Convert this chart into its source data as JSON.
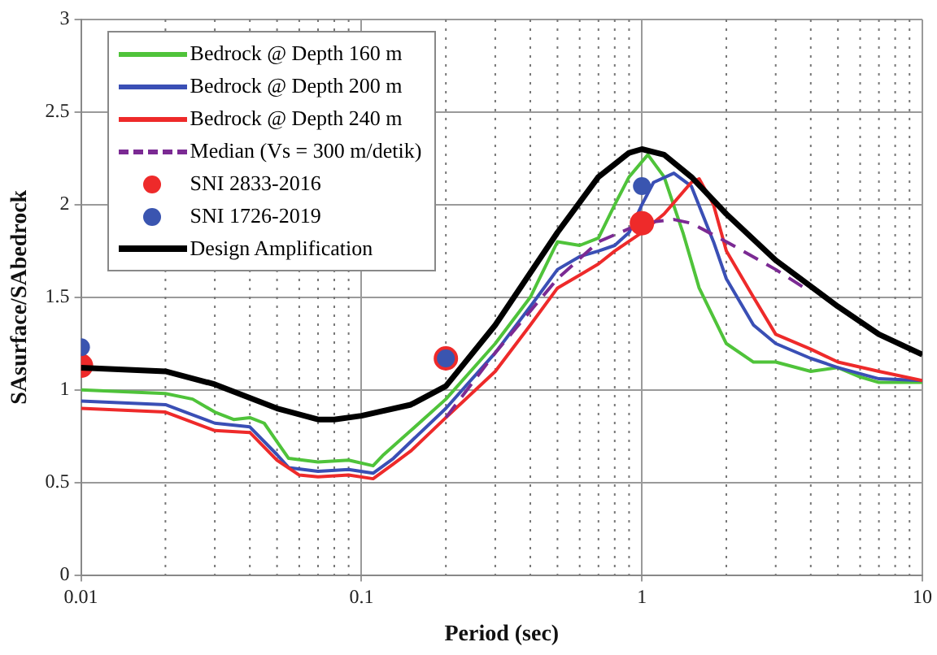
{
  "chart_data": {
    "type": "line",
    "xlabel": "Period (sec)",
    "ylabel": "SAsurface/SAbedrock",
    "log": "x",
    "grid": true,
    "legend": "top left",
    "xlim": [
      0.01,
      10
    ],
    "ylim": [
      0,
      3
    ],
    "xticks": [
      0.01,
      {
        "value": 0.02,
        "label": null
      },
      {
        "value": 0.03,
        "label": null
      },
      {
        "value": 0.04,
        "label": null
      },
      {
        "value": 0.05,
        "label": null
      },
      {
        "value": 0.06,
        "label": null
      },
      {
        "value": 0.07,
        "label": null
      },
      {
        "value": 0.08,
        "label": null
      },
      {
        "value": 0.09,
        "label": null
      },
      0.1,
      {
        "value": 0.2,
        "label": null
      },
      {
        "value": 0.3,
        "label": null
      },
      {
        "value": 0.4,
        "label": null
      },
      {
        "value": 0.5,
        "label": null
      },
      {
        "value": 0.6,
        "label": null
      },
      {
        "value": 0.7,
        "label": null
      },
      {
        "value": 0.8,
        "label": null
      },
      {
        "value": 0.9,
        "label": null
      },
      1,
      {
        "value": 2,
        "label": null
      },
      {
        "value": 3,
        "label": null
      },
      {
        "value": 4,
        "label": null
      },
      {
        "value": 5,
        "label": null
      },
      {
        "value": 6,
        "label": null
      },
      {
        "value": 7,
        "label": null
      },
      {
        "value": 8,
        "label": null
      },
      {
        "value": 9,
        "label": null
      },
      10
    ],
    "yticks": [
      0,
      0.5,
      1,
      1.5,
      2,
      2.5,
      3
    ],
    "series": [
      {
        "name": "Bedrock @ Depth 160 m",
        "marker": "none",
        "color": "#4fc33a",
        "x": [
          0.01,
          0.02,
          0.025,
          0.03,
          0.035,
          0.04,
          0.045,
          0.05,
          0.055,
          0.07,
          0.09,
          0.11,
          0.12,
          0.15,
          0.2,
          0.3,
          0.4,
          0.5,
          0.6,
          0.7,
          0.8,
          0.9,
          1.05,
          1.2,
          1.4,
          1.6,
          2,
          2.5,
          3,
          4,
          5,
          6,
          7,
          10
        ],
        "values": [
          1.0,
          0.98,
          0.95,
          0.88,
          0.84,
          0.85,
          0.82,
          0.72,
          0.63,
          0.61,
          0.62,
          0.59,
          0.65,
          0.78,
          0.95,
          1.25,
          1.5,
          1.8,
          1.78,
          1.82,
          2.0,
          2.15,
          2.27,
          2.15,
          1.85,
          1.55,
          1.25,
          1.15,
          1.15,
          1.1,
          1.12,
          1.07,
          1.04,
          1.04
        ]
      },
      {
        "name": "Bedrock @ Depth 200 m",
        "marker": "none",
        "color": "#3a4fb5",
        "x": [
          0.01,
          0.02,
          0.03,
          0.04,
          0.05,
          0.055,
          0.07,
          0.09,
          0.11,
          0.13,
          0.15,
          0.2,
          0.3,
          0.4,
          0.5,
          0.6,
          0.7,
          0.8,
          0.9,
          1.0,
          1.1,
          1.3,
          1.5,
          1.8,
          2,
          2.5,
          3,
          4,
          5,
          7,
          10
        ],
        "values": [
          0.94,
          0.92,
          0.82,
          0.8,
          0.65,
          0.58,
          0.56,
          0.57,
          0.55,
          0.63,
          0.72,
          0.9,
          1.2,
          1.45,
          1.65,
          1.72,
          1.75,
          1.78,
          1.85,
          2.0,
          2.12,
          2.17,
          2.1,
          1.8,
          1.6,
          1.35,
          1.25,
          1.17,
          1.12,
          1.06,
          1.05
        ]
      },
      {
        "name": "Bedrock @ Depth 240 m",
        "marker": "none",
        "color": "#ee2a2a",
        "x": [
          0.01,
          0.02,
          0.03,
          0.04,
          0.05,
          0.06,
          0.07,
          0.09,
          0.11,
          0.13,
          0.15,
          0.2,
          0.3,
          0.4,
          0.5,
          0.6,
          0.7,
          0.8,
          1.0,
          1.2,
          1.5,
          1.6,
          1.8,
          2,
          2.5,
          3,
          4,
          5,
          7,
          10
        ],
        "values": [
          0.9,
          0.88,
          0.78,
          0.77,
          0.62,
          0.54,
          0.53,
          0.54,
          0.52,
          0.6,
          0.67,
          0.85,
          1.1,
          1.35,
          1.55,
          1.62,
          1.68,
          1.75,
          1.85,
          1.95,
          2.12,
          2.14,
          2.0,
          1.75,
          1.5,
          1.3,
          1.22,
          1.15,
          1.1,
          1.05
        ]
      },
      {
        "name": "Median (Vs = 300 m/detik)",
        "marker": "none",
        "line_style": "dashed",
        "color": "#7b2a93",
        "x": [
          0.2,
          0.3,
          0.5,
          0.7,
          1.0,
          1.3,
          1.5,
          2,
          3,
          3.8
        ],
        "values": [
          0.85,
          1.2,
          1.6,
          1.8,
          1.9,
          1.92,
          1.9,
          1.8,
          1.65,
          1.55
        ]
      },
      {
        "name": "SNI 2833-2016",
        "type": "scatter",
        "marker": "circle",
        "color": "#ee2a2a",
        "x": [
          0.01,
          0.2,
          1.0
        ],
        "values": [
          1.13,
          1.17,
          1.9
        ]
      },
      {
        "name": "SNI 1726-2019",
        "type": "scatter",
        "marker": "circle",
        "color": "#3a55b0",
        "x": [
          0.01,
          0.2,
          1.0
        ],
        "values": [
          1.23,
          1.17,
          2.1
        ]
      },
      {
        "name": "Design Amplification",
        "marker": "none",
        "color": "#000000",
        "x": [
          0.01,
          0.02,
          0.03,
          0.05,
          0.07,
          0.08,
          0.1,
          0.15,
          0.2,
          0.3,
          0.5,
          0.7,
          0.9,
          1.0,
          1.2,
          1.5,
          2,
          3,
          5,
          7,
          10
        ],
        "values": [
          1.12,
          1.1,
          1.03,
          0.9,
          0.84,
          0.84,
          0.86,
          0.92,
          1.02,
          1.35,
          1.85,
          2.15,
          2.28,
          2.3,
          2.27,
          2.15,
          1.95,
          1.7,
          1.45,
          1.3,
          1.19
        ]
      }
    ]
  }
}
